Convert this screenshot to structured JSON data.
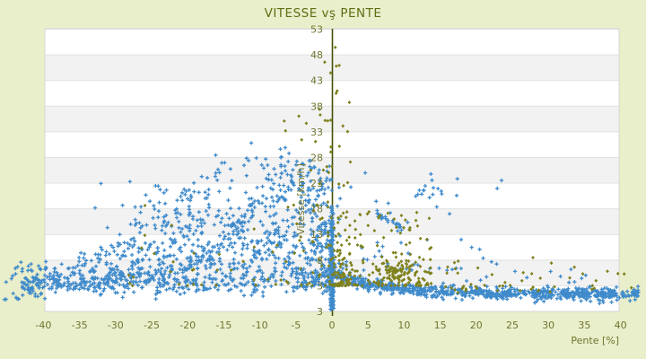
{
  "chart": {
    "title": "VITESSE vş PENTE",
    "xlabel": "Pente [%]",
    "ylabel": "Vitesse [km/h]",
    "y_bottom_label": "3",
    "x_ticks": [
      -40,
      -35,
      -30,
      -25,
      -20,
      -15,
      -10,
      -5,
      0,
      5,
      10,
      15,
      20,
      25,
      30,
      35,
      40
    ],
    "y_ticks": [
      53,
      48,
      43,
      38,
      33,
      28,
      23,
      18,
      13,
      8,
      3
    ],
    "colors": {
      "background": "#e9eecb",
      "plot_bg": "#ffffff",
      "band_gray": "#f2f2f3",
      "gridline": "#e2e2e2",
      "plot_border": "#d6d6d6",
      "axis_line": "#46520c",
      "tick_text": "#71752f",
      "title_text": "#5f6e13",
      "series_blue": "#3e8acb",
      "series_olive": "#7f811c"
    },
    "chart_data": {
      "type": "scatter",
      "title": "VITESSE vş PENTE",
      "xlabel": "Pente [%]",
      "ylabel": "Vitesse [km/h]",
      "xlim": [
        -40,
        40
      ],
      "ylim": [
        -2,
        53
      ],
      "grid": "horizontal-bands",
      "legend": "none",
      "seed": 7,
      "series": [
        {
          "key": "blue",
          "color": "#3e8acb",
          "marker": "plus",
          "clusters": [
            {
              "shape": "left_cloud",
              "n": 1150,
              "pmax": 43,
              "ppow": 1.45,
              "env": {
                "base": 3,
                "amp": 27,
                "mu": -9,
                "s2": 420
              },
              "vpow": 1.9,
              "vnoise": 0.9
            },
            {
              "shape": "uniform_box",
              "n": 30,
              "p": [
                -45.8,
                -40.3
              ],
              "v": [
                0.3,
                8
              ],
              "vpow": 1.6
            },
            {
              "shape": "uniform_box",
              "n": 48,
              "p": [
                -33,
                -7.5
              ],
              "v": [
                10,
                24.5
              ],
              "vpow": 1.35
            },
            {
              "shape": "uniform_box",
              "n": 12,
              "p": [
                15,
                40
              ],
              "v": [
                3.5,
                6.5
              ],
              "vpow": 1
            },
            {
              "shape": "streak",
              "n": 24,
              "from": [
                -26,
                4.5
              ],
              "to": [
                -17.5,
                10.5
              ],
              "noise": 0.45,
              "bend": -1
            },
            {
              "shape": "streak",
              "n": 22,
              "from": [
                -21.5,
                6
              ],
              "to": [
                -12,
                15
              ],
              "noise": 0.45,
              "bend": -1.5
            },
            {
              "shape": "streak",
              "n": 28,
              "from": [
                -19,
                8.5
              ],
              "to": [
                -6.5,
                27.5
              ],
              "noise": 0.5,
              "bend": -3.5
            },
            {
              "shape": "streak",
              "n": 20,
              "from": [
                -13.5,
                6
              ],
              "to": [
                -5.5,
                16.5
              ],
              "noise": 0.45,
              "bend": -1
            },
            {
              "shape": "streak",
              "n": 18,
              "from": [
                -31,
                3.5
              ],
              "to": [
                -23.5,
                7
              ],
              "noise": 0.4,
              "bend": 0
            },
            {
              "shape": "streak",
              "n": 16,
              "from": [
                -9,
                17.5
              ],
              "to": [
                -4,
                26.5
              ],
              "noise": 0.45,
              "bend": -1
            },
            {
              "shape": "streak",
              "n": 16,
              "from": [
                -36.5,
                3.2
              ],
              "to": [
                -29,
                5.6
              ],
              "noise": 0.35,
              "bend": 0
            },
            {
              "shape": "streak",
              "n": 24,
              "from": [
                6.2,
                17.2
              ],
              "to": [
                9.6,
                14.3
              ],
              "noise": 0.35,
              "bend": 0
            },
            {
              "shape": "spike",
              "n": 160,
              "pmu": 0,
              "psd": 0.13,
              "pclip": [
                -0.35,
                0.35
              ],
              "vmin": -1.6,
              "vrange": 19,
              "vpow": 1.25
            },
            {
              "shape": "decay_band",
              "n": 720,
              "pmax": 42.5,
              "base": 1.35,
              "amp": 3.9,
              "tau": 7.5,
              "noise": 0.6
            },
            {
              "shape": "power_scatter",
              "n": 55,
              "p0": 0.5,
              "prange": 24,
              "ppow": 1.7,
              "v0": 6,
              "vrange": 20,
              "vpow": 2.2
            },
            {
              "shape": "gauss_blob",
              "n": 14,
              "pmu": 13.3,
              "psd": 0.9,
              "vmu": 21.5,
              "vsd": 1.0
            }
          ]
        },
        {
          "key": "olive",
          "color": "#7f811c",
          "marker": "diamond",
          "clusters": [
            {
              "shape": "spike",
              "n": 95,
              "pmu": 0.9,
              "psd": 1.2,
              "pclip": [
                -2.6,
                4.5
              ],
              "vmin": 3,
              "vrange": 48,
              "vpow": 3.2
            },
            {
              "shape": "power_scatter",
              "n": 150,
              "p0": 0.3,
              "prange": 13.5,
              "ppow": 1.1,
              "v0": 3,
              "vrange": 14.5,
              "vpow": 2.0
            },
            {
              "shape": "gauss_blob",
              "n": 70,
              "pmu": 8.4,
              "psd": 1.7,
              "vmu": 5.9,
              "vsd": 1.0
            },
            {
              "shape": "power_scatter",
              "n": 25,
              "p0": -0.3,
              "prange": -6.5,
              "ppow": 1.3,
              "v0": 5,
              "vrange": 33,
              "vpow": 1.6
            },
            {
              "shape": "power_scatter",
              "n": 48,
              "p0": -2,
              "prange": -28,
              "ppow": 1.4,
              "v0": 3,
              "vrange": 16,
              "vpow": 2.3
            },
            {
              "shape": "uniform_box",
              "n": 46,
              "p": [
                12,
                42.5
              ],
              "v": [
                2,
                8.5
              ],
              "vpow": 1.5
            },
            {
              "shape": "uniform_box",
              "n": 8,
              "p": [
                15,
                32
              ],
              "v": [
                1.5,
                3
              ],
              "vpow": 1
            }
          ]
        }
      ]
    }
  }
}
